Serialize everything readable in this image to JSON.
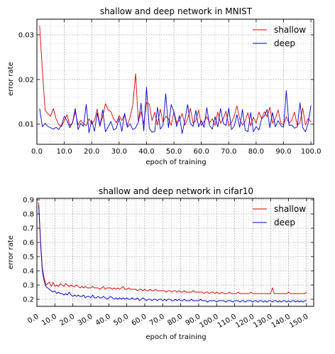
{
  "chart_data": [
    {
      "type": "line",
      "title": "shallow and deep network in MNIST",
      "xlabel": "epoch of training",
      "ylabel": "error rate",
      "xlim": [
        0,
        101
      ],
      "ylim": [
        0.0055,
        0.0335
      ],
      "xticks": [
        "0.0",
        "10.0",
        "20.0",
        "30.0",
        "40.0",
        "50.0",
        "60.0",
        "70.0",
        "80.0",
        "90.0",
        "100.0"
      ],
      "xtick_values": [
        0,
        10,
        20,
        30,
        40,
        50,
        60,
        70,
        80,
        90,
        100
      ],
      "yticks": [
        "0.01",
        "0.02",
        "0.03"
      ],
      "ytick_values": [
        0.01,
        0.02,
        0.03
      ],
      "xtick_rotation": 0,
      "grid": true,
      "legend_position": "top-right",
      "x_start": 1,
      "series": [
        {
          "name": "shallow",
          "color": "#dd0000",
          "values": [
            0.032,
            0.022,
            0.0132,
            0.0123,
            0.0118,
            0.0135,
            0.0112,
            0.0099,
            0.0095,
            0.0108,
            0.0121,
            0.0097,
            0.0103,
            0.0128,
            0.0098,
            0.0109,
            0.0101,
            0.0097,
            0.0112,
            0.0101,
            0.0108,
            0.0134,
            0.0097,
            0.0117,
            0.0146,
            0.0132,
            0.0128,
            0.0112,
            0.0103,
            0.0119,
            0.0108,
            0.0122,
            0.0097,
            0.0116,
            0.0143,
            0.0213,
            0.0106,
            0.0128,
            0.0101,
            0.0148,
            0.0145,
            0.0108,
            0.0127,
            0.0098,
            0.0134,
            0.0104,
            0.0118,
            0.0112,
            0.0097,
            0.0128,
            0.0103,
            0.0108,
            0.0124,
            0.0098,
            0.0112,
            0.0135,
            0.0102,
            0.0108,
            0.0132,
            0.0097,
            0.0106,
            0.0117,
            0.0103,
            0.0112,
            0.0097,
            0.0127,
            0.0102,
            0.0112,
            0.0129,
            0.0096,
            0.0104,
            0.0118,
            0.0141,
            0.0112,
            0.0098,
            0.0107,
            0.0126,
            0.0096,
            0.0116,
            0.0102,
            0.0127,
            0.0113,
            0.0128,
            0.0117,
            0.0138,
            0.0102,
            0.0112,
            0.0132,
            0.0103,
            0.0098,
            0.0117,
            0.0102,
            0.0109,
            0.0127,
            0.0097,
            0.0104,
            0.0136,
            0.0098,
            0.0113,
            0.0105
          ]
        },
        {
          "name": "deep",
          "color": "#0000cc",
          "values": [
            0.0135,
            0.0094,
            0.0102,
            0.0095,
            0.0092,
            0.0089,
            0.0093,
            0.0088,
            0.0098,
            0.0118,
            0.0108,
            0.0092,
            0.0104,
            0.0135,
            0.0088,
            0.0102,
            0.0095,
            0.0144,
            0.0081,
            0.0109,
            0.0084,
            0.0125,
            0.0095,
            0.0132,
            0.0083,
            0.0094,
            0.0106,
            0.0087,
            0.0091,
            0.0114,
            0.0084,
            0.0124,
            0.0093,
            0.0101,
            0.0088,
            0.0092,
            0.0104,
            0.0147,
            0.0085,
            0.0182,
            0.0091,
            0.0082,
            0.0084,
            0.0138,
            0.0089,
            0.0097,
            0.0168,
            0.0092,
            0.0144,
            0.0128,
            0.0095,
            0.0119,
            0.0079,
            0.0109,
            0.0144,
            0.0102,
            0.0095,
            0.0131,
            0.0094,
            0.0108,
            0.0093,
            0.0137,
            0.0097,
            0.0089,
            0.0117,
            0.0094,
            0.0135,
            0.0102,
            0.0097,
            0.0136,
            0.0088,
            0.0096,
            0.0121,
            0.0093,
            0.0133,
            0.0087,
            0.0083,
            0.0126,
            0.0083,
            0.0095,
            0.0087,
            0.0112,
            0.0118,
            0.0133,
            0.0092,
            0.0126,
            0.0094,
            0.0108,
            0.0097,
            0.0093,
            0.0175,
            0.0097,
            0.0098,
            0.0091,
            0.0094,
            0.0148,
            0.0092,
            0.0083,
            0.0103,
            0.0142
          ]
        }
      ]
    },
    {
      "type": "line",
      "title": "shallow and deep network in cifar10",
      "xlabel": "epoch of training",
      "ylabel": "error rate",
      "xlim": [
        0,
        154
      ],
      "ylim": [
        0.15,
        0.91
      ],
      "xticks": [
        "0.0",
        "10.0",
        "20.0",
        "30.0",
        "40.0",
        "50.0",
        "60.0",
        "70.0",
        "80.0",
        "90.0",
        "100.0",
        "110.0",
        "120.0",
        "130.0",
        "140.0",
        "150.0"
      ],
      "xtick_values": [
        0,
        10,
        20,
        30,
        40,
        50,
        60,
        70,
        80,
        90,
        100,
        110,
        120,
        130,
        140,
        150
      ],
      "yticks": [
        "0.2",
        "0.3",
        "0.4",
        "0.5",
        "0.6",
        "0.7",
        "0.8",
        "0.9"
      ],
      "ytick_values": [
        0.2,
        0.3,
        0.4,
        0.5,
        0.6,
        0.7,
        0.8,
        0.9
      ],
      "xtick_rotation": -30,
      "grid": true,
      "legend_position": "top-right",
      "x_start": 1,
      "series": [
        {
          "name": "shallow",
          "color": "#dd0000",
          "values": [
            0.88,
            0.62,
            0.42,
            0.35,
            0.3,
            0.31,
            0.32,
            0.29,
            0.32,
            0.29,
            0.3,
            0.29,
            0.31,
            0.3,
            0.29,
            0.31,
            0.3,
            0.29,
            0.3,
            0.29,
            0.29,
            0.3,
            0.29,
            0.28,
            0.29,
            0.28,
            0.29,
            0.28,
            0.28,
            0.28,
            0.29,
            0.28,
            0.28,
            0.28,
            0.27,
            0.28,
            0.29,
            0.27,
            0.28,
            0.28,
            0.28,
            0.27,
            0.28,
            0.27,
            0.28,
            0.27,
            0.28,
            0.29,
            0.27,
            0.27,
            0.28,
            0.27,
            0.27,
            0.27,
            0.27,
            0.26,
            0.27,
            0.27,
            0.26,
            0.27,
            0.26,
            0.26,
            0.27,
            0.26,
            0.26,
            0.27,
            0.26,
            0.26,
            0.26,
            0.26,
            0.26,
            0.25,
            0.26,
            0.26,
            0.25,
            0.26,
            0.26,
            0.25,
            0.26,
            0.25,
            0.25,
            0.26,
            0.25,
            0.25,
            0.25,
            0.25,
            0.26,
            0.25,
            0.25,
            0.25,
            0.25,
            0.25,
            0.24,
            0.25,
            0.25,
            0.24,
            0.25,
            0.25,
            0.24,
            0.25,
            0.24,
            0.24,
            0.25,
            0.24,
            0.24,
            0.24,
            0.25,
            0.24,
            0.24,
            0.24,
            0.24,
            0.25,
            0.24,
            0.24,
            0.24,
            0.24,
            0.24,
            0.24,
            0.25,
            0.24,
            0.24,
            0.24,
            0.24,
            0.24,
            0.24,
            0.24,
            0.24,
            0.24,
            0.24,
            0.24,
            0.28,
            0.24,
            0.24,
            0.24,
            0.24,
            0.24,
            0.24,
            0.24,
            0.24,
            0.25,
            0.24,
            0.24,
            0.24,
            0.24,
            0.24,
            0.24,
            0.24,
            0.24,
            0.24,
            0.25
          ]
        },
        {
          "name": "deep",
          "color": "#0000cc",
          "values": [
            0.86,
            0.6,
            0.4,
            0.33,
            0.29,
            0.28,
            0.27,
            0.26,
            0.25,
            0.26,
            0.24,
            0.25,
            0.24,
            0.24,
            0.23,
            0.24,
            0.23,
            0.25,
            0.23,
            0.22,
            0.23,
            0.22,
            0.23,
            0.22,
            0.22,
            0.23,
            0.21,
            0.22,
            0.22,
            0.21,
            0.23,
            0.21,
            0.21,
            0.22,
            0.21,
            0.21,
            0.22,
            0.21,
            0.2,
            0.21,
            0.22,
            0.21,
            0.2,
            0.21,
            0.2,
            0.21,
            0.2,
            0.21,
            0.2,
            0.21,
            0.2,
            0.2,
            0.21,
            0.2,
            0.2,
            0.21,
            0.19,
            0.2,
            0.21,
            0.2,
            0.19,
            0.2,
            0.2,
            0.19,
            0.2,
            0.2,
            0.19,
            0.2,
            0.2,
            0.19,
            0.2,
            0.19,
            0.2,
            0.2,
            0.19,
            0.19,
            0.2,
            0.19,
            0.2,
            0.19,
            0.19,
            0.2,
            0.19,
            0.19,
            0.19,
            0.2,
            0.19,
            0.19,
            0.19,
            0.19,
            0.2,
            0.19,
            0.19,
            0.19,
            0.18,
            0.19,
            0.19,
            0.19,
            0.19,
            0.18,
            0.19,
            0.19,
            0.19,
            0.19,
            0.18,
            0.19,
            0.19,
            0.19,
            0.18,
            0.19,
            0.19,
            0.19,
            0.18,
            0.19,
            0.19,
            0.18,
            0.19,
            0.19,
            0.19,
            0.18,
            0.19,
            0.19,
            0.18,
            0.19,
            0.19,
            0.18,
            0.19,
            0.18,
            0.19,
            0.19,
            0.18,
            0.19,
            0.19,
            0.18,
            0.19,
            0.18,
            0.19,
            0.19,
            0.18,
            0.19,
            0.18,
            0.19,
            0.19,
            0.18,
            0.19,
            0.18,
            0.19,
            0.18,
            0.19,
            0.19
          ]
        }
      ]
    }
  ]
}
